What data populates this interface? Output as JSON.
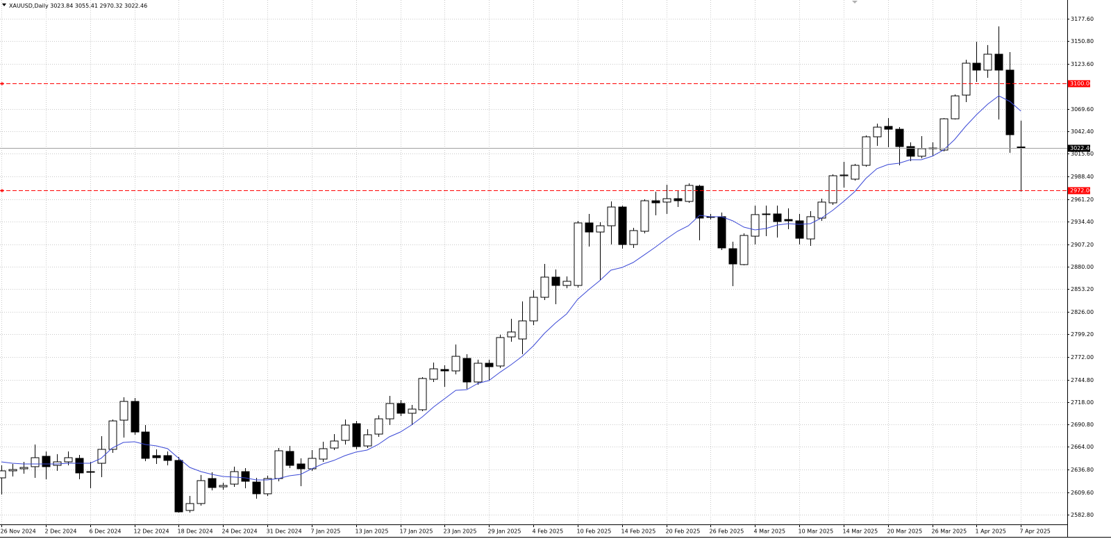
{
  "chart_data": {
    "type": "candlestick",
    "title": "XAUUSD,Daily",
    "categories": [
      "26 Nov 2024",
      null,
      null,
      null,
      "2 Dec 2024",
      null,
      null,
      null,
      "6 Dec 2024",
      null,
      null,
      null,
      "12 Dec 2024",
      null,
      null,
      null,
      "18 Dec 2024",
      null,
      null,
      null,
      "24 Dec 2024",
      null,
      null,
      null,
      "31 Dec 2024",
      null,
      null,
      null,
      "7 Jan 2025",
      null,
      null,
      null,
      "13 Jan 2025",
      null,
      null,
      null,
      "17 Jan 2025",
      null,
      null,
      null,
      "23 Jan 2025",
      null,
      null,
      null,
      "29 Jan 2025",
      null,
      null,
      null,
      "4 Feb 2025",
      null,
      null,
      null,
      "10 Feb 2025",
      null,
      null,
      null,
      "14 Feb 2025",
      null,
      null,
      null,
      "20 Feb 2025",
      null,
      null,
      null,
      "26 Feb 2025",
      null,
      null,
      null,
      "4 Mar 2025",
      null,
      null,
      null,
      "10 Mar 2025",
      null,
      null,
      null,
      "14 Mar 2025",
      null,
      null,
      null,
      "20 Mar 2025",
      null,
      null,
      null,
      "26 Mar 2025",
      null,
      null,
      null,
      "1 Apr 2025",
      null,
      null,
      null,
      "7 Apr 2025"
    ],
    "open": [
      2626.9,
      2635.3,
      2637.8,
      2640.3,
      2652.8,
      2641.9,
      2646.1,
      2650.3,
      2633.6,
      2644.4,
      2661.1,
      2696.1,
      2718.6,
      2681.9,
      2653.6,
      2653.6,
      2647.8,
      2587.8,
      2596.1,
      2626.1,
      2616.1,
      2619.4,
      2634.4,
      2621.9,
      2607.8,
      2626.1,
      2658.6,
      2643.6,
      2637.8,
      2649.4,
      2662.7,
      2671.9,
      2691.9,
      2665.2,
      2679.4,
      2697.7,
      2716.1,
      2704.4,
      2708.6,
      2745.2,
      2756.9,
      2755.2,
      2770.2,
      2741.9,
      2764.4,
      2761.1,
      2796.0,
      2793.5,
      2815.2,
      2843.5,
      2867.7,
      2857.7,
      2857.7,
      2932.7,
      2921.8,
      2929.3,
      2951.8,
      2906.8,
      2922.7,
      2959.3,
      2957.7,
      2961.8,
      2958.5,
      2976.8,
      2940.2,
      2940.2,
      2901.8,
      2882.7,
      2916.8,
      2942.7,
      2943.5,
      2936.8,
      2935.2,
      2913.5,
      2938.5,
      2956.8,
      2989.3,
      2985.2,
      3001.8,
      3036.0,
      3048.5,
      3045.1,
      3024.3,
      3012.7,
      3021.8,
      3020.1,
      3057.6,
      3086.0,
      3124.3,
      3116.0,
      3135.1,
      3116.0,
      3023.84
    ],
    "high": [
      2641.9,
      2643.6,
      2646.1,
      2666.9,
      2658.6,
      2655.3,
      2658.6,
      2654.4,
      2646.1,
      2676.9,
      2696.9,
      2723.6,
      2722.7,
      2690.2,
      2661.1,
      2658.6,
      2651.9,
      2605.3,
      2630.3,
      2633.6,
      2621.1,
      2640.3,
      2638.6,
      2626.9,
      2629.4,
      2662.7,
      2665.2,
      2650.3,
      2660.2,
      2670.2,
      2679.4,
      2696.9,
      2695.2,
      2685.2,
      2701.9,
      2725.2,
      2720.2,
      2714.4,
      2747.7,
      2765.2,
      2761.9,
      2786.9,
      2775.2,
      2768.6,
      2768.6,
      2798.6,
      2817.7,
      2838.5,
      2851.9,
      2883.5,
      2876.9,
      2868.5,
      2935.2,
      2943.5,
      2933.5,
      2958.5,
      2953.5,
      2926.8,
      2961.0,
      2970.2,
      2978.5,
      2971.8,
      2980.2,
      2978.5,
      2943.5,
      2945.2,
      2910.2,
      2920.2,
      2953.5,
      2953.5,
      2953.5,
      2950.2,
      2943.5,
      2946.8,
      2961.8,
      2991.0,
      3006.0,
      3003.5,
      3037.6,
      3051.8,
      3058.5,
      3047.6,
      3029.3,
      3036.8,
      3029.3,
      3058.5,
      3086.8,
      3128.5,
      3150.1,
      3146.0,
      3168.4,
      3137.6,
      3055.41
    ],
    "low": [
      2606.9,
      2628.6,
      2631.9,
      2626.9,
      2625.3,
      2635.3,
      2641.9,
      2625.3,
      2614.4,
      2627.8,
      2656.9,
      2675.2,
      2678.6,
      2646.9,
      2643.6,
      2641.9,
      2585.3,
      2585.3,
      2593.6,
      2611.9,
      2612.8,
      2616.1,
      2614.4,
      2601.9,
      2605.3,
      2622.8,
      2638.6,
      2616.9,
      2635.3,
      2646.1,
      2660.2,
      2666.9,
      2661.1,
      2662.7,
      2676.1,
      2690.2,
      2701.1,
      2690.2,
      2706.9,
      2741.9,
      2736.1,
      2751.1,
      2733.6,
      2738.6,
      2743.6,
      2758.6,
      2790.2,
      2775.2,
      2810.2,
      2840.2,
      2835.2,
      2854.4,
      2855.2,
      2904.3,
      2864.4,
      2906.8,
      2901.8,
      2902.7,
      2920.2,
      2941.8,
      2943.5,
      2951.8,
      2956.8,
      2911.8,
      2936.8,
      2900.2,
      2856.9,
      2881.8,
      2906.8,
      2916.8,
      2915.2,
      2925.2,
      2906.8,
      2905.2,
      2935.2,
      2954.3,
      2975.2,
      2983.5,
      3000.2,
      3025.1,
      3023.5,
      3001.8,
      3006.8,
      3010.2,
      3013.5,
      3018.5,
      3056.8,
      3077.6,
      3101.8,
      3106.8,
      3056.8,
      3016.8,
      2970.32
    ],
    "close": [
      2635.3,
      2636.9,
      2639.4,
      2651.1,
      2640.3,
      2646.1,
      2651.1,
      2632.8,
      2634.4,
      2661.1,
      2695.2,
      2718.6,
      2681.9,
      2650.3,
      2651.1,
      2647.8,
      2586.1,
      2596.1,
      2623.6,
      2615.3,
      2617.8,
      2634.4,
      2622.8,
      2607.8,
      2626.1,
      2659.4,
      2641.9,
      2637.8,
      2650.3,
      2661.9,
      2671.1,
      2690.2,
      2664.4,
      2678.6,
      2697.7,
      2716.1,
      2704.4,
      2709.4,
      2746.1,
      2757.7,
      2755.2,
      2772.7,
      2741.9,
      2764.4,
      2760.2,
      2795.2,
      2801.9,
      2815.2,
      2843.5,
      2867.7,
      2857.7,
      2862.7,
      2932.7,
      2921.8,
      2929.3,
      2951.8,
      2906.8,
      2923.5,
      2959.3,
      2956.8,
      2961.8,
      2959.3,
      2977.7,
      2938.5,
      2939.3,
      2902.7,
      2883.5,
      2917.7,
      2942.7,
      2943.5,
      2934.3,
      2935.2,
      2914.3,
      2940.2,
      2957.7,
      2989.3,
      2990.2,
      3001.8,
      3036.0,
      3047.6,
      3045.1,
      3024.3,
      3012.7,
      3021.8,
      3022.6,
      3057.6,
      3085.1,
      3124.3,
      3116.0,
      3135.1,
      3116.0,
      3038.5,
      3022.46
    ],
    "up_color": "#ffffff",
    "down_color": "#000000",
    "outline_color": "#000000",
    "overlay_color": "#3a48d6",
    "overlay_values": [
      2646.1,
      2644.4,
      2643.6,
      2643.6,
      2643.6,
      2643.6,
      2644.4,
      2644.4,
      2644.4,
      2650.3,
      2662.7,
      2669.4,
      2670.2,
      2666.9,
      2665.2,
      2661.9,
      2650.3,
      2639.4,
      2634.4,
      2631.1,
      2628.6,
      2627.8,
      2626.9,
      2624.4,
      2624.4,
      2626.1,
      2629.4,
      2631.1,
      2637.8,
      2643.6,
      2647.8,
      2653.6,
      2657.8,
      2660.2,
      2666.9,
      2676.1,
      2681.9,
      2690.2,
      2700.2,
      2711.9,
      2721.9,
      2731.9,
      2732.7,
      2740.2,
      2743.6,
      2753.6,
      2762.7,
      2772.7,
      2785.2,
      2800.2,
      2812.7,
      2823.5,
      2841.0,
      2852.7,
      2863.5,
      2876.0,
      2879.3,
      2885.2,
      2894.3,
      2903.5,
      2913.5,
      2922.7,
      2929.3,
      2941.8,
      2940.2,
      2940.2,
      2935.2,
      2927.7,
      2924.3,
      2926.0,
      2930.2,
      2931.8,
      2931.0,
      2931.8,
      2938.5,
      2947.7,
      2958.5,
      2970.2,
      2986.0,
      2997.7,
      3002.7,
      3004.3,
      3008.5,
      3008.5,
      3012.7,
      3020.1,
      3032.6,
      3048.5,
      3062.6,
      3075.1,
      3085.1,
      3078.4,
      3066.8
    ],
    "ylim": [
      2556.1,
      3200.1
    ],
    "yticks": [
      {
        "value": 3177.6,
        "label": "3177.60"
      },
      {
        "value": 3150.8,
        "label": "3150.80"
      },
      {
        "value": 3123.6,
        "label": "3123.60"
      },
      {
        "value": 3069.6,
        "label": "3069.60"
      },
      {
        "value": 3042.4,
        "label": "3042.40"
      },
      {
        "value": 3015.6,
        "label": "3015.60"
      },
      {
        "value": 2988.4,
        "label": "2988.40"
      },
      {
        "value": 2961.2,
        "label": "2961.20"
      },
      {
        "value": 2934.4,
        "label": "2934.40"
      },
      {
        "value": 2907.2,
        "label": "2907.20"
      },
      {
        "value": 2880,
        "label": "2880.00"
      },
      {
        "value": 2853.2,
        "label": "2853.20"
      },
      {
        "value": 2826,
        "label": "2826.00"
      },
      {
        "value": 2799.2,
        "label": "2799.20"
      },
      {
        "value": 2772,
        "label": "2772.00"
      },
      {
        "value": 2744.8,
        "label": "2744.80"
      },
      {
        "value": 2718,
        "label": "2718.00"
      },
      {
        "value": 2690.8,
        "label": "2690.80"
      },
      {
        "value": 2664,
        "label": "2664.00"
      },
      {
        "value": 2636.8,
        "label": "2636.80"
      },
      {
        "value": 2609.6,
        "label": "2609.60"
      },
      {
        "value": 2582.8,
        "label": "2582.80"
      }
    ],
    "hlines": [
      {
        "value": 3100,
        "label": "3100.00",
        "color": "#ff0000"
      },
      {
        "value": 2972,
        "label": "2972.00",
        "color": "#ff0000"
      }
    ],
    "grid": true
  }
}
